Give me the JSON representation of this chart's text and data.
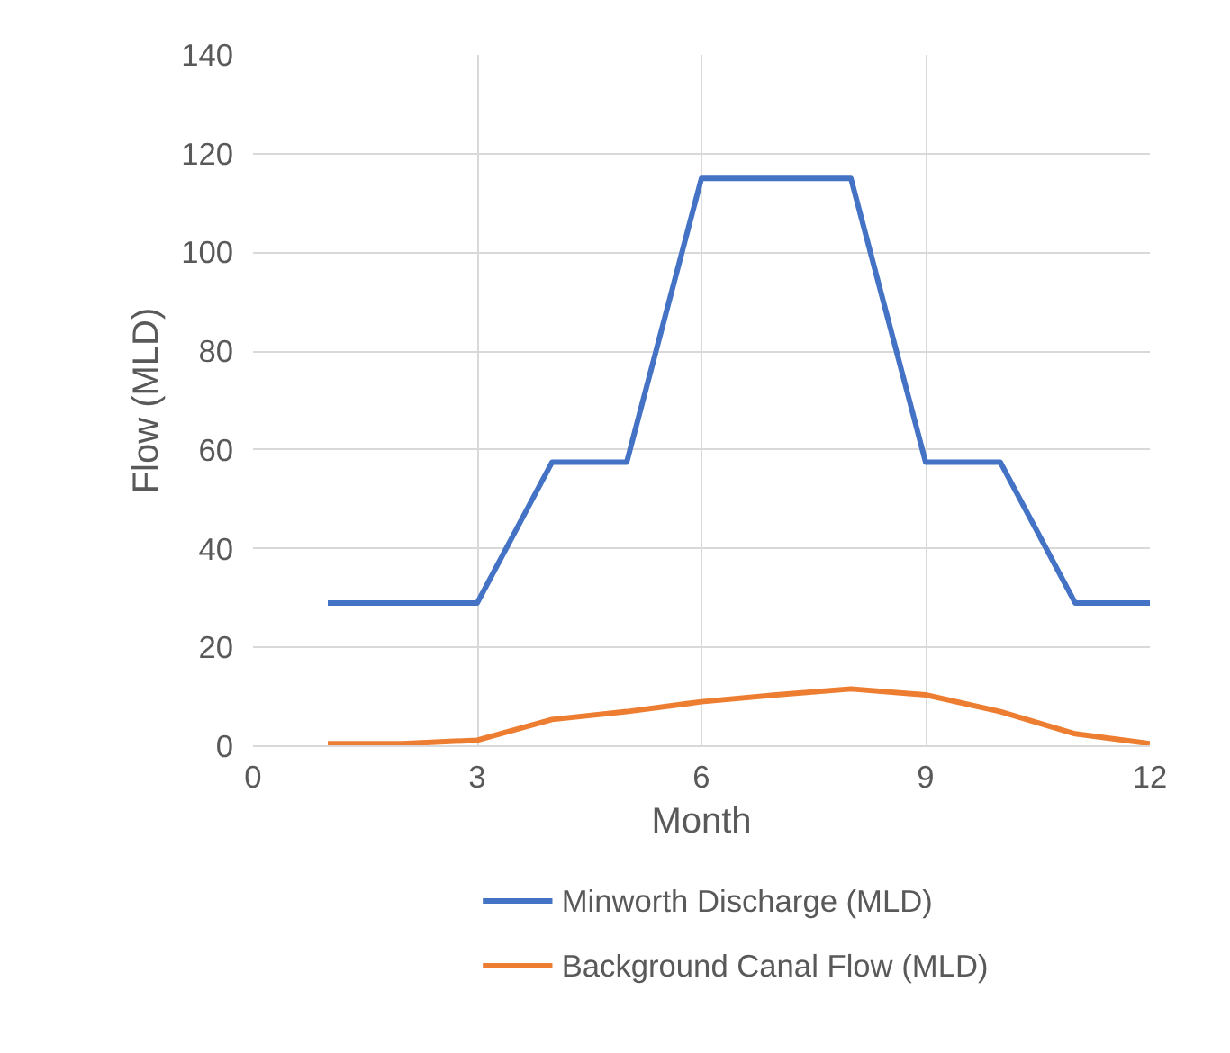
{
  "chart_data": {
    "type": "line",
    "xlabel": "Month",
    "ylabel": "Flow (MLD)",
    "x": [
      1,
      2,
      3,
      4,
      5,
      6,
      7,
      8,
      9,
      10,
      11,
      12
    ],
    "series": [
      {
        "name": "Minworth Discharge (MLD)",
        "color": "#4472c4",
        "values": [
          29,
          29,
          29,
          57.5,
          57.5,
          115,
          115,
          115,
          57.5,
          57.5,
          29,
          29
        ]
      },
      {
        "name": "Background Canal Flow (MLD)",
        "color": "#ed7d31",
        "values": [
          0.5,
          0.5,
          1.2,
          5.4,
          7,
          9,
          10.4,
          11.6,
          10.4,
          7,
          2.5,
          0.5
        ]
      }
    ],
    "xlim": [
      0,
      12
    ],
    "xticks": [
      0,
      3,
      6,
      9,
      12
    ],
    "ylim": [
      0,
      140
    ],
    "yticks": [
      0,
      20,
      40,
      60,
      80,
      100,
      120,
      140
    ],
    "grid": true,
    "legend": "bottom",
    "marker": "none",
    "line_style": "solid"
  }
}
